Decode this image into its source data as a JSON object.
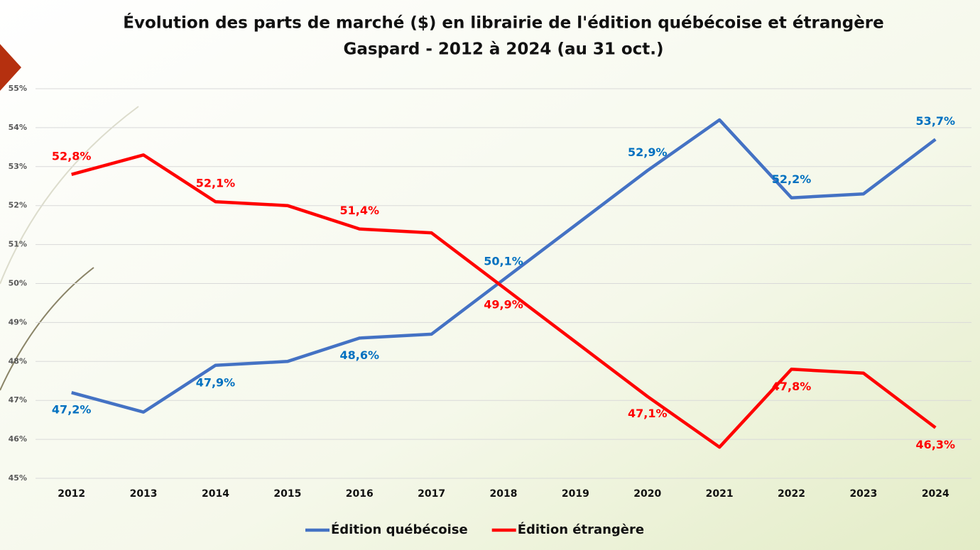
{
  "chart_data": {
    "type": "line",
    "title": "Évolution des parts de marché ($) en librairie de l'édition québécoise et étrangère",
    "subtitle": "Gaspard - 2012 à 2024 (au 31 oct.)",
    "categories": [
      "2012",
      "2013",
      "2014",
      "2015",
      "2016",
      "2017",
      "2018",
      "2019",
      "2020",
      "2021",
      "2022",
      "2023",
      "2024"
    ],
    "series": [
      {
        "name": "Édition québécoise",
        "color": "#4472c4",
        "label_color": "#0070c0",
        "values": [
          47.2,
          46.7,
          47.9,
          48.0,
          48.6,
          48.7,
          50.1,
          51.5,
          52.9,
          54.2,
          52.2,
          52.3,
          53.7
        ],
        "value_labels": [
          "47,2%",
          null,
          "47,9%",
          null,
          "48,6%",
          null,
          "50,1%",
          null,
          "52,9%",
          null,
          "52,2%",
          null,
          "53,7%"
        ]
      },
      {
        "name": "Édition étrangère",
        "color": "#ff0000",
        "label_color": "#ff0000",
        "values": [
          52.8,
          53.3,
          52.1,
          52.0,
          51.4,
          51.3,
          49.9,
          48.5,
          47.1,
          45.8,
          47.8,
          47.7,
          46.3
        ],
        "value_labels": [
          "52,8%",
          null,
          "52,1%",
          null,
          "51,4%",
          null,
          "49,9%",
          null,
          "47,1%",
          null,
          "47,8%",
          null,
          "46,3%"
        ]
      }
    ],
    "ylim": [
      45,
      55
    ],
    "yticks": [
      {
        "value": 45,
        "label": "45%"
      },
      {
        "value": 46,
        "label": "46%"
      },
      {
        "value": 47,
        "label": "47%"
      },
      {
        "value": 48,
        "label": "48%"
      },
      {
        "value": 49,
        "label": "49%"
      },
      {
        "value": 50,
        "label": "50%"
      },
      {
        "value": 51,
        "label": "51%"
      },
      {
        "value": 52,
        "label": "52%"
      },
      {
        "value": 53,
        "label": "53%"
      },
      {
        "value": 54,
        "label": "54%"
      },
      {
        "value": 55,
        "label": "55%"
      }
    ],
    "grid": true,
    "legend": "bottom"
  }
}
